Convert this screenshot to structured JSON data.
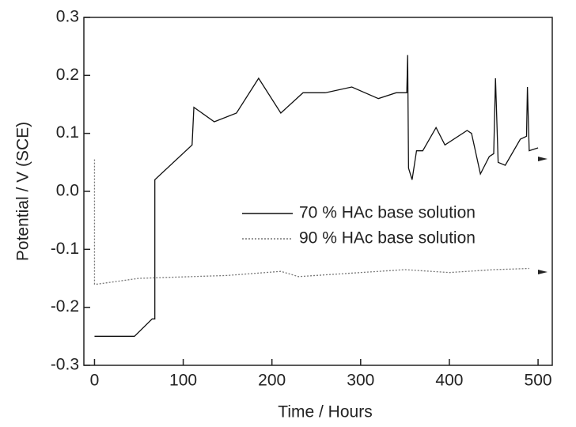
{
  "chart_data": {
    "type": "line",
    "xlabel": "Time / Hours",
    "ylabel": "Potential / V (SCE)",
    "xlim": [
      -12,
      516
    ],
    "ylim": [
      -0.3,
      0.3
    ],
    "xticks": [
      0,
      100,
      200,
      300,
      400,
      500
    ],
    "yticks": [
      -0.3,
      -0.2,
      -0.1,
      {
        "value": 0,
        "label": "0.0"
      },
      0.1,
      0.2,
      0.3
    ],
    "series": [
      {
        "name": "70 % HAc base solution",
        "color": "#111111",
        "style": "solid",
        "x": [
          0,
          45,
          65,
          68,
          68,
          110,
          112,
          135,
          160,
          185,
          210,
          235,
          260,
          290,
          320,
          340,
          352,
          353,
          354,
          358,
          363,
          370,
          385,
          395,
          420,
          425,
          435,
          445,
          450,
          452,
          455,
          463,
          480,
          487,
          488,
          490,
          500
        ],
        "values": [
          -0.25,
          -0.25,
          -0.22,
          -0.22,
          0.02,
          0.08,
          0.145,
          0.12,
          0.135,
          0.195,
          0.135,
          0.17,
          0.17,
          0.18,
          0.16,
          0.17,
          0.17,
          0.235,
          0.04,
          0.02,
          0.07,
          0.07,
          0.11,
          0.08,
          0.105,
          0.1,
          0.03,
          0.06,
          0.065,
          0.195,
          0.05,
          0.045,
          0.09,
          0.095,
          0.18,
          0.07,
          0.075
        ]
      },
      {
        "name": "90 % HAc base solution",
        "color": "#777777",
        "style": "dotted",
        "x": [
          0,
          0,
          3,
          50,
          150,
          210,
          230,
          300,
          350,
          400,
          450,
          490
        ],
        "values": [
          0.055,
          -0.16,
          -0.16,
          -0.15,
          -0.145,
          -0.138,
          -0.147,
          -0.14,
          -0.135,
          -0.14,
          -0.135,
          -0.133
        ]
      }
    ]
  }
}
